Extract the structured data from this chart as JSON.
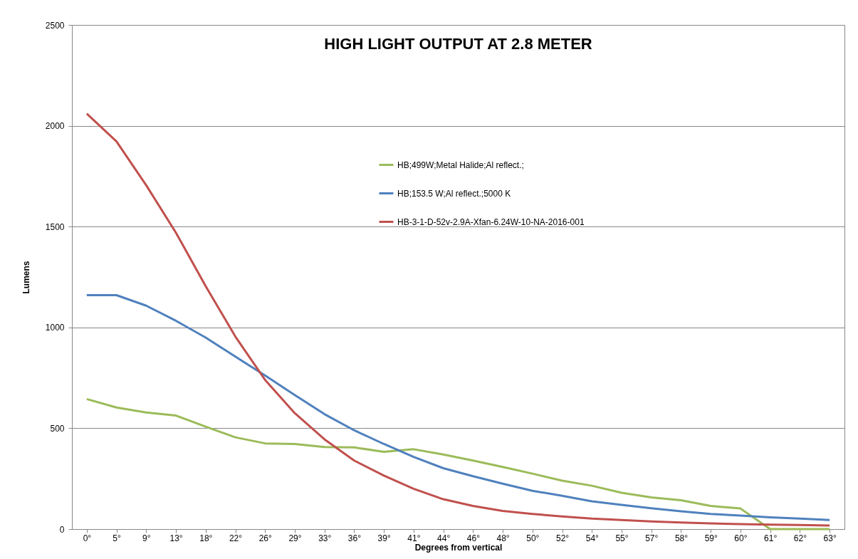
{
  "chart_data": {
    "type": "line",
    "title": "HIGH LIGHT OUTPUT AT 2.8 METER",
    "xlabel": "Degrees from vertical",
    "ylabel": "Lumens",
    "categories": [
      "0°",
      "5°",
      "9°",
      "13°",
      "18°",
      "22°",
      "26°",
      "29°",
      "33°",
      "36°",
      "39°",
      "41°",
      "44°",
      "46°",
      "48°",
      "50°",
      "52°",
      "54°",
      "55°",
      "57°",
      "58°",
      "59°",
      "60°",
      "61°",
      "62°",
      "63°"
    ],
    "series": [
      {
        "name": "HB;499W;Metal Halide;Al reflect.;",
        "color": "#9bbb59",
        "values": [
          645,
          603,
          578,
          563,
          508,
          455,
          425,
          422,
          407,
          405,
          383,
          396,
          370,
          340,
          308,
          275,
          240,
          215,
          180,
          157,
          143,
          115,
          102,
          0,
          0,
          0
        ]
      },
      {
        "name": "HB;153.5 W;Al reflect.;5000 K",
        "color": "#4f81bd",
        "values": [
          1160,
          1160,
          1108,
          1033,
          950,
          855,
          762,
          665,
          570,
          490,
          422,
          358,
          302,
          262,
          225,
          190,
          165,
          138,
          120,
          103,
          88,
          75,
          67,
          58,
          52,
          45
        ]
      },
      {
        "name": "HB-3-1-D-52v-2.9A-Xfan-6.24W-10-NA-2016-001",
        "color": "#c0504d",
        "values": [
          2060,
          1922,
          1705,
          1470,
          1205,
          955,
          740,
          575,
          445,
          340,
          265,
          200,
          148,
          115,
          90,
          75,
          63,
          52,
          45,
          38,
          33,
          28,
          25,
          22,
          20,
          18
        ]
      }
    ],
    "ylim": [
      0,
      2500
    ],
    "yticks": [
      0,
      500,
      1000,
      1500,
      2000,
      2500
    ],
    "grid": "y",
    "legend": "top right",
    "marker": "none",
    "line_style": "solid"
  }
}
